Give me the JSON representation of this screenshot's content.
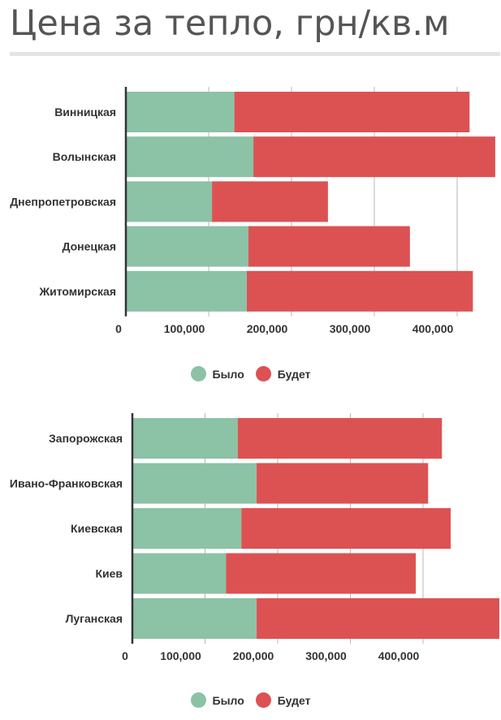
{
  "page": {
    "title": "Цена за тепло, грн/кв.м"
  },
  "colors": {
    "was": "#8cc2a6",
    "will_be": "#dc5253",
    "grid": "#b7b7b7",
    "axis": "#333333"
  },
  "chart_data": [
    {
      "type": "bar",
      "orientation": "horizontal",
      "stacked": true,
      "categories": [
        "Винницкая",
        "Волынская",
        "Днепропетровская",
        "Донецкая",
        "Житомирская"
      ],
      "series": [
        {
          "name": "Было",
          "values": [
            131000,
            154000,
            104000,
            148000,
            146000
          ]
        },
        {
          "name": "Будет",
          "values": [
            284000,
            292000,
            140000,
            195000,
            273000
          ]
        }
      ],
      "xticks": [
        0,
        100000,
        200000,
        300000,
        400000
      ],
      "xtick_labels": [
        "0",
        "100,000",
        "200,000",
        "300,000",
        "400,000"
      ],
      "xlim": [
        0,
        450000
      ],
      "grid": true,
      "legend": {
        "position": "bottom",
        "entries": [
          "Было",
          "Будет"
        ]
      }
    },
    {
      "type": "bar",
      "orientation": "horizontal",
      "stacked": true,
      "categories": [
        "Запорожская",
        "Ивано-Франковская",
        "Киевская",
        "Киев",
        "Луганская"
      ],
      "series": [
        {
          "name": "Было",
          "values": [
            145000,
            171000,
            150000,
            129000,
            171000
          ]
        },
        {
          "name": "Будет",
          "values": [
            281000,
            236000,
            288000,
            261000,
            334000
          ]
        }
      ],
      "xticks": [
        0,
        100000,
        200000,
        300000,
        400000
      ],
      "xtick_labels": [
        "0",
        "100,000",
        "200,000",
        "300,000",
        "400,000"
      ],
      "xlim": [
        0,
        500000
      ],
      "grid": true,
      "legend": {
        "position": "bottom",
        "entries": [
          "Было",
          "Будет"
        ]
      }
    }
  ]
}
